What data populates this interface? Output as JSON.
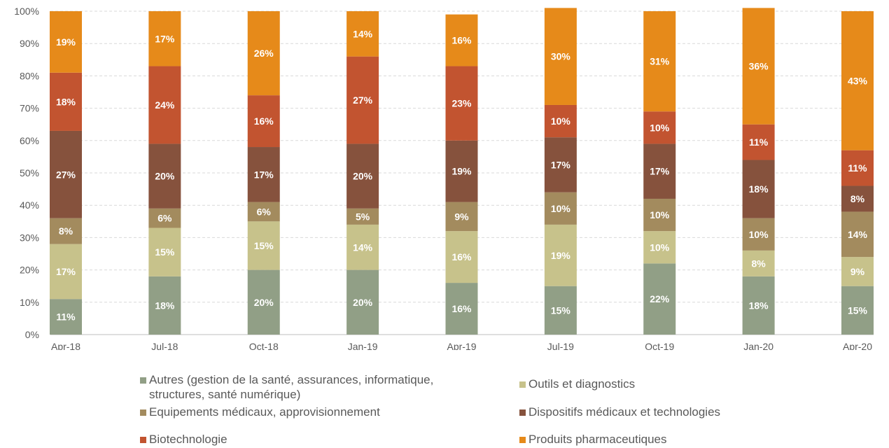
{
  "chart_data": {
    "type": "bar",
    "stacked": true,
    "categories": [
      "Apr-18",
      "Jul-18",
      "Oct-18",
      "Jan-19",
      "Apr-19",
      "Jul-19",
      "Oct-19",
      "Jan-20",
      "Apr-20"
    ],
    "y_ticks": [
      "0%",
      "10%",
      "20%",
      "30%",
      "40%",
      "50%",
      "60%",
      "70%",
      "80%",
      "90%",
      "100%"
    ],
    "ylim": [
      0,
      100
    ],
    "grid": true,
    "legend_position": "bottom",
    "series": [
      {
        "name": "Autres (gestion de la santé, assurances, informatique, structures, santé numérique)",
        "color": "#919f86",
        "values": [
          11,
          18,
          20,
          20,
          16,
          15,
          22,
          18,
          15
        ],
        "labels": [
          "11%",
          "18%",
          "20%",
          "20%",
          "16%",
          "15%",
          "22%",
          "18%",
          "15%"
        ]
      },
      {
        "name": "Outils et diagnostics",
        "color": "#c7c28b",
        "values": [
          17,
          15,
          15,
          14,
          16,
          19,
          10,
          8,
          9
        ],
        "labels": [
          "17%",
          "15%",
          "15%",
          "14%",
          "16%",
          "19%",
          "10%",
          "8%",
          "9%"
        ]
      },
      {
        "name": "Equipements médicaux, approvisionnement",
        "color": "#a38b5e",
        "values": [
          8,
          6,
          6,
          5,
          9,
          10,
          10,
          10,
          14
        ],
        "labels": [
          "8%",
          "6%",
          "6%",
          "5%",
          "9%",
          "10%",
          "10%",
          "10%",
          "14%"
        ]
      },
      {
        "name": "Dispositifs médicaux et technologies",
        "color": "#86523d",
        "values": [
          27,
          20,
          17,
          20,
          19,
          17,
          17,
          18,
          8
        ],
        "labels": [
          "27%",
          "20%",
          "17%",
          "20%",
          "19%",
          "17%",
          "17%",
          "18%",
          "8%"
        ]
      },
      {
        "name": "Biotechnologie",
        "color": "#c25430",
        "values": [
          18,
          24,
          16,
          27,
          23,
          10,
          10,
          11,
          11
        ],
        "labels": [
          "18%",
          "24%",
          "16%",
          "27%",
          "23%",
          "10%",
          "10%",
          "11%",
          "11%"
        ]
      },
      {
        "name": "Produits pharmaceutiques",
        "color": "#e68a1a",
        "values": [
          19,
          17,
          26,
          14,
          16,
          30,
          31,
          36,
          43
        ],
        "labels": [
          "19%",
          "17%",
          "26%",
          "14%",
          "16%",
          "30%",
          "31%",
          "36%",
          "43%"
        ]
      }
    ]
  },
  "legend": {
    "line1_a": "Autres (gestion de la santé, assurances, informatique,",
    "line1_b": "structures, santé numérique)",
    "outils": "Outils et diagnostics",
    "equipements": "Equipements médicaux, approvisionnement",
    "dispositifs": "Dispositifs médicaux et technologies",
    "biotech": "Biotechnologie",
    "pharma": "Produits pharmaceutiques"
  }
}
